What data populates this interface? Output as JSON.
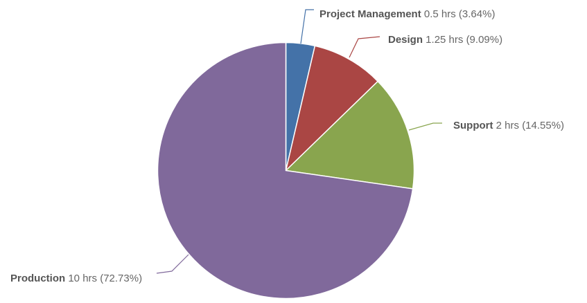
{
  "chart_data": {
    "type": "pie",
    "unit": "hrs",
    "slices": [
      {
        "name": "Project Management",
        "value": 0.5,
        "value_text": "0.5 hrs",
        "percent_text": "(3.64%)",
        "color": "#4472a8"
      },
      {
        "name": "Design",
        "value": 1.25,
        "value_text": "1.25 hrs",
        "percent_text": "(9.09%)",
        "color": "#aa4644"
      },
      {
        "name": "Support",
        "value": 2,
        "value_text": "2 hrs",
        "percent_text": "(14.55%)",
        "color": "#89a54e"
      },
      {
        "name": "Production",
        "value": 10,
        "value_text": "10 hrs",
        "percent_text": "(72.73%)",
        "color": "#80699b"
      }
    ],
    "start_direction": "top",
    "rotation": "clockwise",
    "legend": "none"
  }
}
